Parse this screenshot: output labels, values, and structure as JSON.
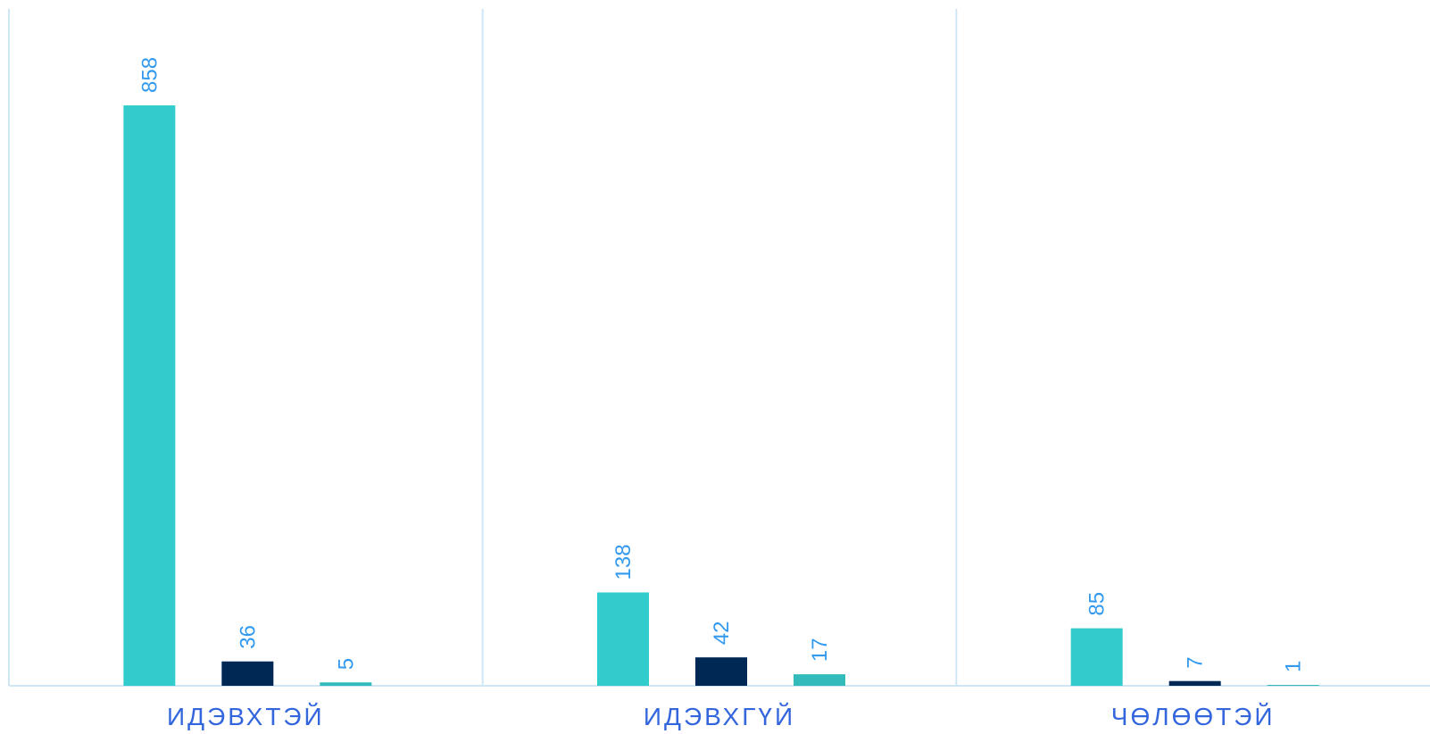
{
  "chart_data": {
    "type": "bar",
    "categories": [
      "ИДЭВХТЭЙ",
      "ИДЭВХГҮЙ",
      "ЧӨЛӨӨТЭЙ"
    ],
    "series": [
      {
        "values": [
          858,
          138,
          85
        ],
        "color": "#33cccc"
      },
      {
        "values": [
          36,
          42,
          7
        ],
        "color": "#002855"
      },
      {
        "values": [
          5,
          17,
          1
        ],
        "color": "#33bbbb"
      }
    ],
    "ylim": [
      0,
      1000
    ],
    "grid": "vertical separators between categories",
    "legend": "none",
    "data_labels": {
      "show": true,
      "rotation": "vertical",
      "color": "#3399ee"
    },
    "colors": {
      "category_label": "#3366dd",
      "grid": "#cfe6f5",
      "axis": "#cfe6f5"
    },
    "value_labels": [
      [
        "858",
        "36",
        "5"
      ],
      [
        "138",
        "42",
        "17"
      ],
      [
        "85",
        "7",
        "1"
      ]
    ]
  }
}
